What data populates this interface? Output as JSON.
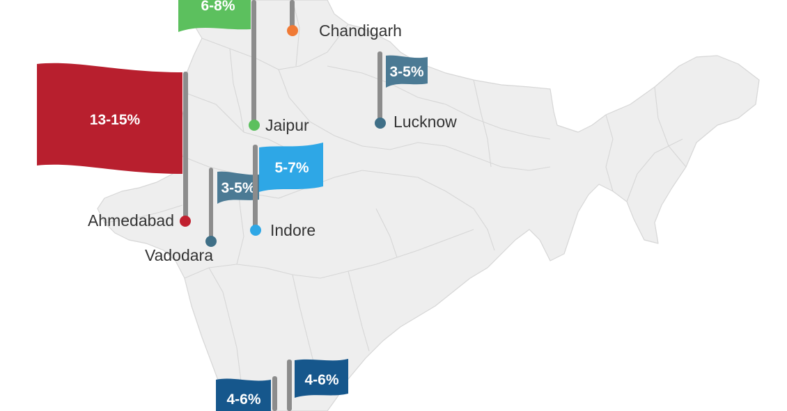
{
  "map": {
    "land_color": "#eeeeee",
    "border_color": "#d6d6d6"
  },
  "pole_color": "#8c8c8c",
  "markers": [
    {
      "id": "ahmedabad",
      "city": "Ahmedabad",
      "value": "13-15%",
      "color": "#b81f2e",
      "dot_color": "#c0202f"
    },
    {
      "id": "vadodara",
      "city": "Vadodara",
      "value": "3-5%",
      "color": "#4b7a94",
      "dot_color": "#3f6f87"
    },
    {
      "id": "jaipur",
      "city": "Jaipur",
      "value": "6-8%",
      "color": "#5cc05e",
      "dot_color": "#5cc05e"
    },
    {
      "id": "indore",
      "city": "Indore",
      "value": "5-7%",
      "color": "#2ea7e6",
      "dot_color": "#2ea7e6"
    },
    {
      "id": "chandigarh",
      "city": "Chandigarh",
      "value": "",
      "color": "#f07a35",
      "dot_color": "#f07a35"
    },
    {
      "id": "lucknow",
      "city": "Lucknow",
      "value": "3-5%",
      "color": "#4b7a94",
      "dot_color": "#3f6f87"
    },
    {
      "id": "south_1",
      "city": "",
      "value": "4-6%",
      "color": "#16578c",
      "dot_color": "#16578c"
    },
    {
      "id": "south_2",
      "city": "",
      "value": "4-6%",
      "color": "#16578c",
      "dot_color": "#16578c"
    }
  ]
}
